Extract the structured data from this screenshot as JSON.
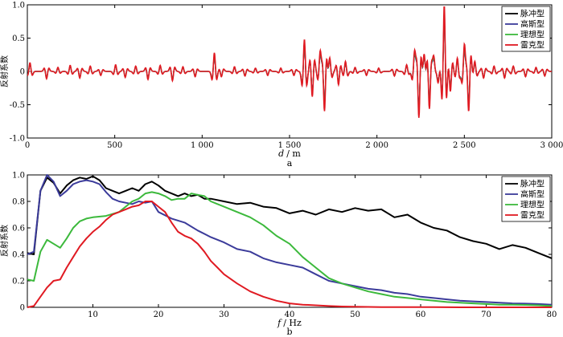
{
  "chart_data": [
    {
      "type": "line",
      "panel_label": "a",
      "xlabel_var": "d",
      "xlabel_unit": "/ m",
      "ylabel": "反射系数",
      "xlim": [
        0,
        3000
      ],
      "ylim": [
        -1.0,
        1.0
      ],
      "xticks": [
        0,
        500,
        1000,
        1500,
        2000,
        2500,
        3000
      ],
      "xtick_labels": [
        "0",
        "500",
        "1 000",
        "1 500",
        "2 000",
        "2 500",
        "3 000"
      ],
      "yticks": [
        -1.0,
        -0.5,
        0,
        0.5,
        1.0
      ],
      "ytick_labels": [
        "-1.0",
        "-0.5",
        "0",
        "0.5",
        "1.0"
      ],
      "legend_position": "top-right",
      "reflectors": [
        {
          "d": 15,
          "a": 0.13
        },
        {
          "d": 110,
          "a": -0.11
        },
        {
          "d": 175,
          "a": 0.06
        },
        {
          "d": 245,
          "a": 0.09
        },
        {
          "d": 300,
          "a": -0.1
        },
        {
          "d": 360,
          "a": 0.08
        },
        {
          "d": 420,
          "a": -0.06
        },
        {
          "d": 505,
          "a": 0.1
        },
        {
          "d": 560,
          "a": -0.09
        },
        {
          "d": 620,
          "a": 0.08
        },
        {
          "d": 690,
          "a": -0.12
        },
        {
          "d": 760,
          "a": 0.09
        },
        {
          "d": 830,
          "a": -0.14
        },
        {
          "d": 890,
          "a": 0.07
        },
        {
          "d": 960,
          "a": -0.08
        },
        {
          "d": 1070,
          "a": 0.28
        },
        {
          "d": 1110,
          "a": -0.08
        },
        {
          "d": 1185,
          "a": 0.07
        },
        {
          "d": 1245,
          "a": -0.07
        },
        {
          "d": 1305,
          "a": 0.05
        },
        {
          "d": 1375,
          "a": -0.06
        },
        {
          "d": 1450,
          "a": 0.05
        },
        {
          "d": 1525,
          "a": -0.06
        },
        {
          "d": 1585,
          "a": 0.48
        },
        {
          "d": 1630,
          "a": -0.38
        },
        {
          "d": 1675,
          "a": 0.28
        },
        {
          "d": 1700,
          "a": -0.58
        },
        {
          "d": 1730,
          "a": 0.2
        },
        {
          "d": 1780,
          "a": -0.2
        },
        {
          "d": 1820,
          "a": 0.15
        },
        {
          "d": 1875,
          "a": 0.06
        },
        {
          "d": 1940,
          "a": -0.06
        },
        {
          "d": 2010,
          "a": 0.05
        },
        {
          "d": 2100,
          "a": -0.07
        },
        {
          "d": 2170,
          "a": 0.1
        },
        {
          "d": 2215,
          "a": 0.28
        },
        {
          "d": 2240,
          "a": -0.68
        },
        {
          "d": 2270,
          "a": 0.25
        },
        {
          "d": 2300,
          "a": -0.55
        },
        {
          "d": 2325,
          "a": 0.2
        },
        {
          "d": 2350,
          "a": -0.16
        },
        {
          "d": 2385,
          "a": 0.99
        },
        {
          "d": 2420,
          "a": -0.3
        },
        {
          "d": 2460,
          "a": 0.2
        },
        {
          "d": 2500,
          "a": 0.38
        },
        {
          "d": 2525,
          "a": -0.58
        },
        {
          "d": 2560,
          "a": 0.15
        },
        {
          "d": 2610,
          "a": -0.1
        },
        {
          "d": 2670,
          "a": 0.08
        },
        {
          "d": 2730,
          "a": -0.1
        },
        {
          "d": 2780,
          "a": 0.08
        },
        {
          "d": 2850,
          "a": -0.08
        },
        {
          "d": 2910,
          "a": 0.06
        },
        {
          "d": 2960,
          "a": -0.07
        }
      ],
      "series": [
        {
          "name": "脉冲型",
          "color": "#000000",
          "scale": 0.82
        },
        {
          "name": "高斯型",
          "color": "#3b3b9a",
          "scale": 0.78
        },
        {
          "name": "理想型",
          "color": "#3cb93c",
          "scale": 0.86
        },
        {
          "name": "雷克型",
          "color": "#e01a22",
          "scale": 1.0
        }
      ]
    },
    {
      "type": "line",
      "panel_label": "b",
      "xlabel_var": "f",
      "xlabel_unit": "/ Hz",
      "ylabel": "反射系数",
      "xlim": [
        0,
        80
      ],
      "ylim": [
        0,
        1.0
      ],
      "xticks": [
        10,
        20,
        30,
        40,
        50,
        60,
        70,
        80
      ],
      "xtick_labels": [
        "10",
        "20",
        "30",
        "40",
        "50",
        "60",
        "70",
        "80"
      ],
      "yticks": [
        0,
        0.2,
        0.4,
        0.6,
        0.8,
        1.0
      ],
      "ytick_labels": [
        "0",
        "0.2",
        "0.4",
        "0.6",
        "0.8",
        "1.0"
      ],
      "legend_position": "top-right",
      "series": [
        {
          "name": "脉冲型",
          "color": "#000000",
          "x": [
            0,
            1,
            2,
            3,
            4,
            5,
            6,
            7,
            8,
            9,
            10,
            11,
            12,
            13,
            14,
            15,
            16,
            17,
            18,
            19,
            20,
            21,
            22,
            23,
            24,
            25,
            26,
            27,
            28,
            29,
            30,
            32,
            34,
            36,
            38,
            40,
            42,
            44,
            46,
            48,
            50,
            52,
            54,
            56,
            58,
            60,
            62,
            64,
            66,
            68,
            70,
            72,
            74,
            76,
            78,
            80
          ],
          "y": [
            0.41,
            0.4,
            0.88,
            0.98,
            0.94,
            0.86,
            0.92,
            0.96,
            0.98,
            0.97,
            0.99,
            0.96,
            0.9,
            0.88,
            0.86,
            0.88,
            0.9,
            0.88,
            0.93,
            0.95,
            0.92,
            0.88,
            0.86,
            0.84,
            0.86,
            0.84,
            0.85,
            0.82,
            0.82,
            0.81,
            0.8,
            0.78,
            0.79,
            0.76,
            0.75,
            0.71,
            0.73,
            0.7,
            0.74,
            0.72,
            0.75,
            0.73,
            0.74,
            0.68,
            0.7,
            0.64,
            0.6,
            0.58,
            0.53,
            0.5,
            0.48,
            0.44,
            0.47,
            0.45,
            0.41,
            0.37
          ]
        },
        {
          "name": "高斯型",
          "color": "#3b3b9a",
          "x": [
            0,
            1,
            2,
            3,
            4,
            5,
            6,
            7,
            8,
            9,
            10,
            11,
            12,
            13,
            14,
            15,
            16,
            17,
            18,
            19,
            20,
            22,
            24,
            26,
            28,
            30,
            32,
            34,
            36,
            38,
            40,
            42,
            44,
            46,
            48,
            50,
            52,
            54,
            56,
            58,
            60,
            62,
            64,
            66,
            68,
            70,
            72,
            74,
            76,
            78,
            80
          ],
          "y": [
            0.4,
            0.42,
            0.88,
            1.0,
            0.95,
            0.84,
            0.88,
            0.93,
            0.95,
            0.96,
            0.95,
            0.93,
            0.87,
            0.82,
            0.8,
            0.79,
            0.78,
            0.8,
            0.79,
            0.8,
            0.72,
            0.67,
            0.64,
            0.58,
            0.53,
            0.49,
            0.44,
            0.42,
            0.37,
            0.34,
            0.32,
            0.3,
            0.25,
            0.2,
            0.18,
            0.16,
            0.14,
            0.13,
            0.11,
            0.1,
            0.08,
            0.07,
            0.06,
            0.05,
            0.045,
            0.04,
            0.035,
            0.03,
            0.028,
            0.025,
            0.02
          ]
        },
        {
          "name": "理想型",
          "color": "#3cb93c",
          "x": [
            0,
            1,
            2,
            3,
            4,
            5,
            6,
            7,
            8,
            9,
            10,
            12,
            14,
            16,
            17,
            18,
            19,
            20,
            21,
            22,
            23,
            24,
            25,
            26,
            27,
            28,
            30,
            32,
            34,
            36,
            38,
            40,
            42,
            44,
            46,
            48,
            50,
            52,
            54,
            56,
            58,
            60,
            62,
            64,
            66,
            68,
            70,
            72,
            74,
            76,
            78,
            80
          ],
          "y": [
            0.21,
            0.2,
            0.42,
            0.51,
            0.48,
            0.45,
            0.52,
            0.6,
            0.65,
            0.67,
            0.68,
            0.69,
            0.72,
            0.8,
            0.82,
            0.86,
            0.87,
            0.86,
            0.84,
            0.81,
            0.82,
            0.82,
            0.86,
            0.85,
            0.84,
            0.8,
            0.76,
            0.72,
            0.68,
            0.62,
            0.54,
            0.48,
            0.38,
            0.3,
            0.22,
            0.18,
            0.15,
            0.12,
            0.1,
            0.08,
            0.07,
            0.06,
            0.05,
            0.04,
            0.035,
            0.03,
            0.025,
            0.02,
            0.02,
            0.018,
            0.015,
            0.01
          ]
        },
        {
          "name": "雷克型",
          "color": "#e01a22",
          "x": [
            0,
            1,
            2,
            3,
            4,
            5,
            6,
            7,
            8,
            9,
            10,
            11,
            12,
            13,
            14,
            15,
            16,
            17,
            18,
            19,
            20,
            21,
            22,
            23,
            24,
            25,
            26,
            27,
            28,
            29,
            30,
            32,
            34,
            36,
            38,
            40,
            42,
            44,
            46,
            48,
            50,
            54,
            58,
            62,
            66,
            70,
            74,
            78,
            80
          ],
          "y": [
            0.0,
            0.01,
            0.08,
            0.15,
            0.2,
            0.21,
            0.3,
            0.38,
            0.46,
            0.52,
            0.57,
            0.61,
            0.66,
            0.7,
            0.72,
            0.74,
            0.76,
            0.77,
            0.8,
            0.8,
            0.76,
            0.72,
            0.64,
            0.57,
            0.54,
            0.52,
            0.48,
            0.42,
            0.35,
            0.3,
            0.25,
            0.18,
            0.12,
            0.08,
            0.05,
            0.03,
            0.02,
            0.015,
            0.01,
            0.006,
            0.004,
            0.002,
            0.001,
            0.001,
            0.0,
            0.0,
            0.0,
            0.0,
            0.0
          ]
        }
      ]
    }
  ]
}
